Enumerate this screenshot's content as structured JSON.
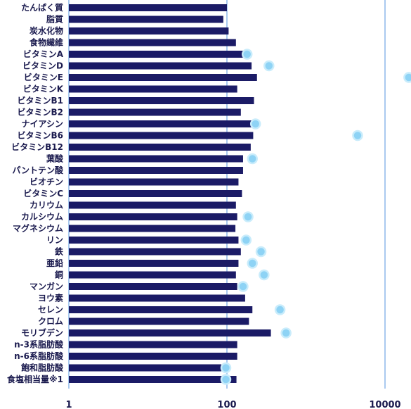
{
  "chart_data": {
    "type": "bar",
    "orientation": "horizontal",
    "x_scale": "log",
    "xlim": [
      1,
      25000
    ],
    "x_ticks": [
      {
        "value": 1,
        "label": "1"
      },
      {
        "value": 100,
        "label": "100"
      },
      {
        "value": 10000,
        "label": "10000"
      }
    ],
    "grid": "vertical lines at 1, 100, 10000",
    "colors": {
      "bar": "#1b1b66",
      "dot": "#8ed3f5",
      "dot_edge": "#c9ecfb",
      "grid": "#a9c9ef"
    },
    "categories": [
      "たんぱく質",
      "脂質",
      "炭水化物",
      "食物繊維",
      "ビタミンA",
      "ビタミンD",
      "ビタミンE",
      "ビタミンK",
      "ビタミンB1",
      "ビタミンB2",
      "ナイアシン",
      "ビタミンB6",
      "ビタミンB12",
      "葉酸",
      "パントテン酸",
      "ビオチン",
      "ビタミンC",
      "カリウム",
      "カルシウム",
      "マグネシウム",
      "リン",
      "鉄",
      "亜鉛",
      "銅",
      "マンガン",
      "ヨウ素",
      "セレン",
      "クロム",
      "モリブデン",
      "n-3系脂肪酸",
      "n-6系脂肪酸",
      "飽和脂肪酸",
      "食塩相当量※1"
    ],
    "series": [
      {
        "values": [
          100,
          90,
          105,
          130,
          165,
          205,
          240,
          135,
          220,
          150,
          215,
          215,
          200,
          160,
          160,
          140,
          155,
          130,
          135,
          128,
          140,
          150,
          140,
          130,
          135,
          170,
          210,
          190,
          360,
          135,
          135,
          85,
          132
        ]
      },
      {
        "values": [
          null,
          null,
          null,
          null,
          180,
          340,
          null,
          null,
          null,
          null,
          230,
          4500,
          null,
          210,
          null,
          null,
          null,
          null,
          185,
          null,
          175,
          270,
          210,
          295,
          160,
          null,
          470,
          null,
          560,
          null,
          null,
          97,
          97
        ]
      }
    ],
    "offscreen_marker": {
      "category": "ビタミンE",
      "value": 20000
    }
  }
}
